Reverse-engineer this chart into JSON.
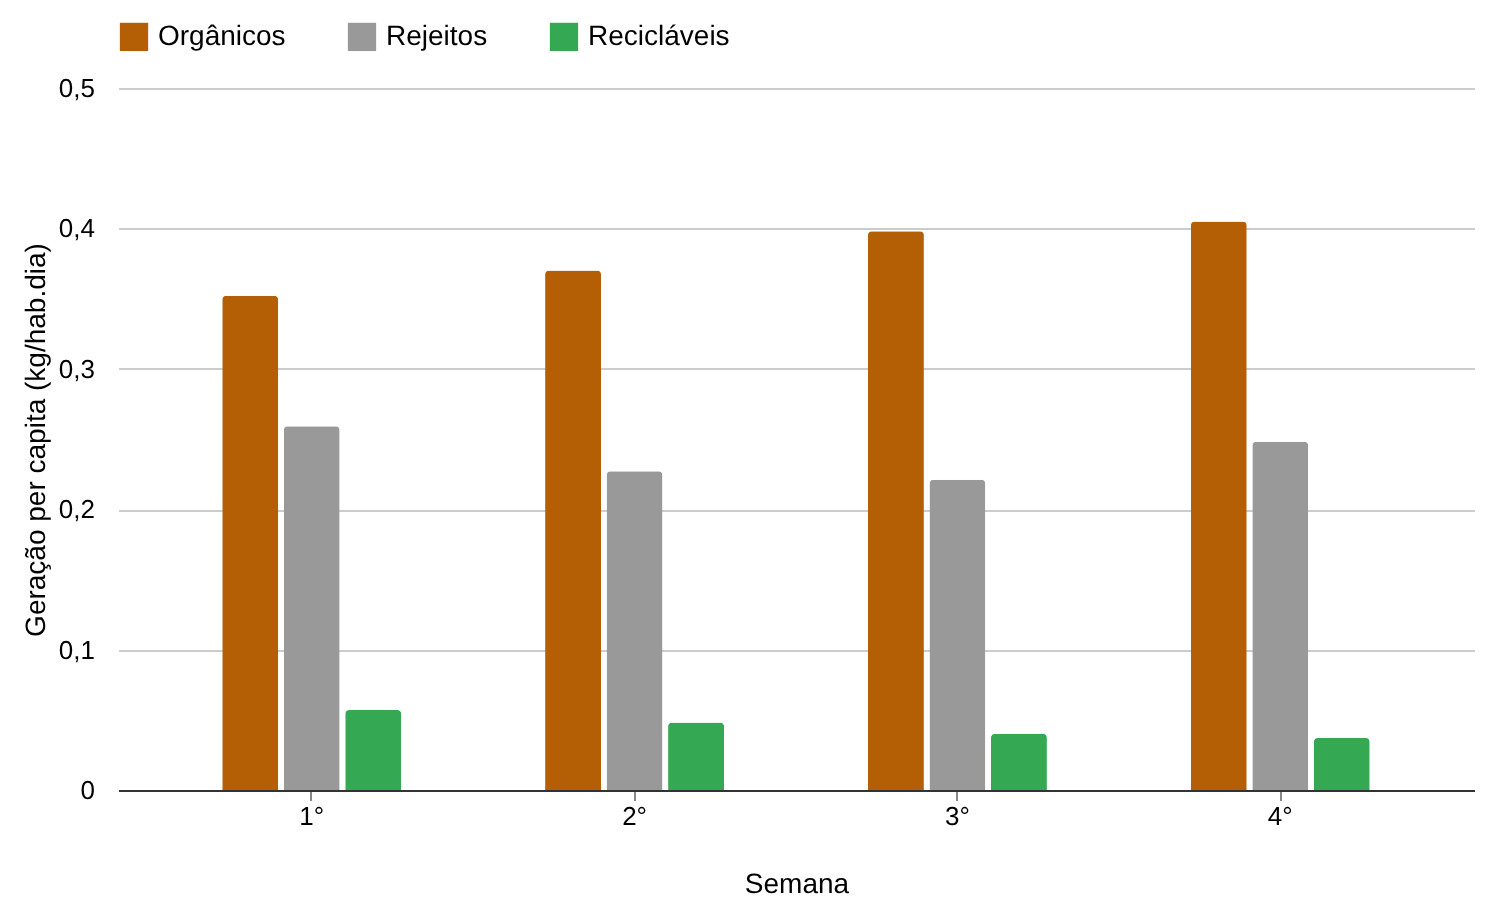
{
  "chart_data": {
    "type": "bar",
    "xlabel": "Semana",
    "ylabel": "Geração per capita (kg/hab.dia)",
    "categories": [
      "1°",
      "2°",
      "3°",
      "4°"
    ],
    "series": [
      {
        "name": "Orgânicos",
        "color": "#b45f06",
        "values": [
          0.352,
          0.37,
          0.398,
          0.405
        ]
      },
      {
        "name": "Rejeitos",
        "color": "#999999",
        "values": [
          0.259,
          0.227,
          0.221,
          0.248
        ]
      },
      {
        "name": "Recicláveis",
        "color": "#34a853",
        "values": [
          0.057,
          0.048,
          0.04,
          0.037
        ]
      }
    ],
    "ylim": [
      0,
      0.5
    ],
    "yticks": [
      {
        "value": 0,
        "label": "0"
      },
      {
        "value": 0.1,
        "label": "0,1"
      },
      {
        "value": 0.2,
        "label": "0,2"
      },
      {
        "value": 0.3,
        "label": "0,3"
      },
      {
        "value": 0.4,
        "label": "0,4"
      },
      {
        "value": 0.5,
        "label": "0,5"
      }
    ],
    "grid": "y",
    "legend": "top"
  }
}
